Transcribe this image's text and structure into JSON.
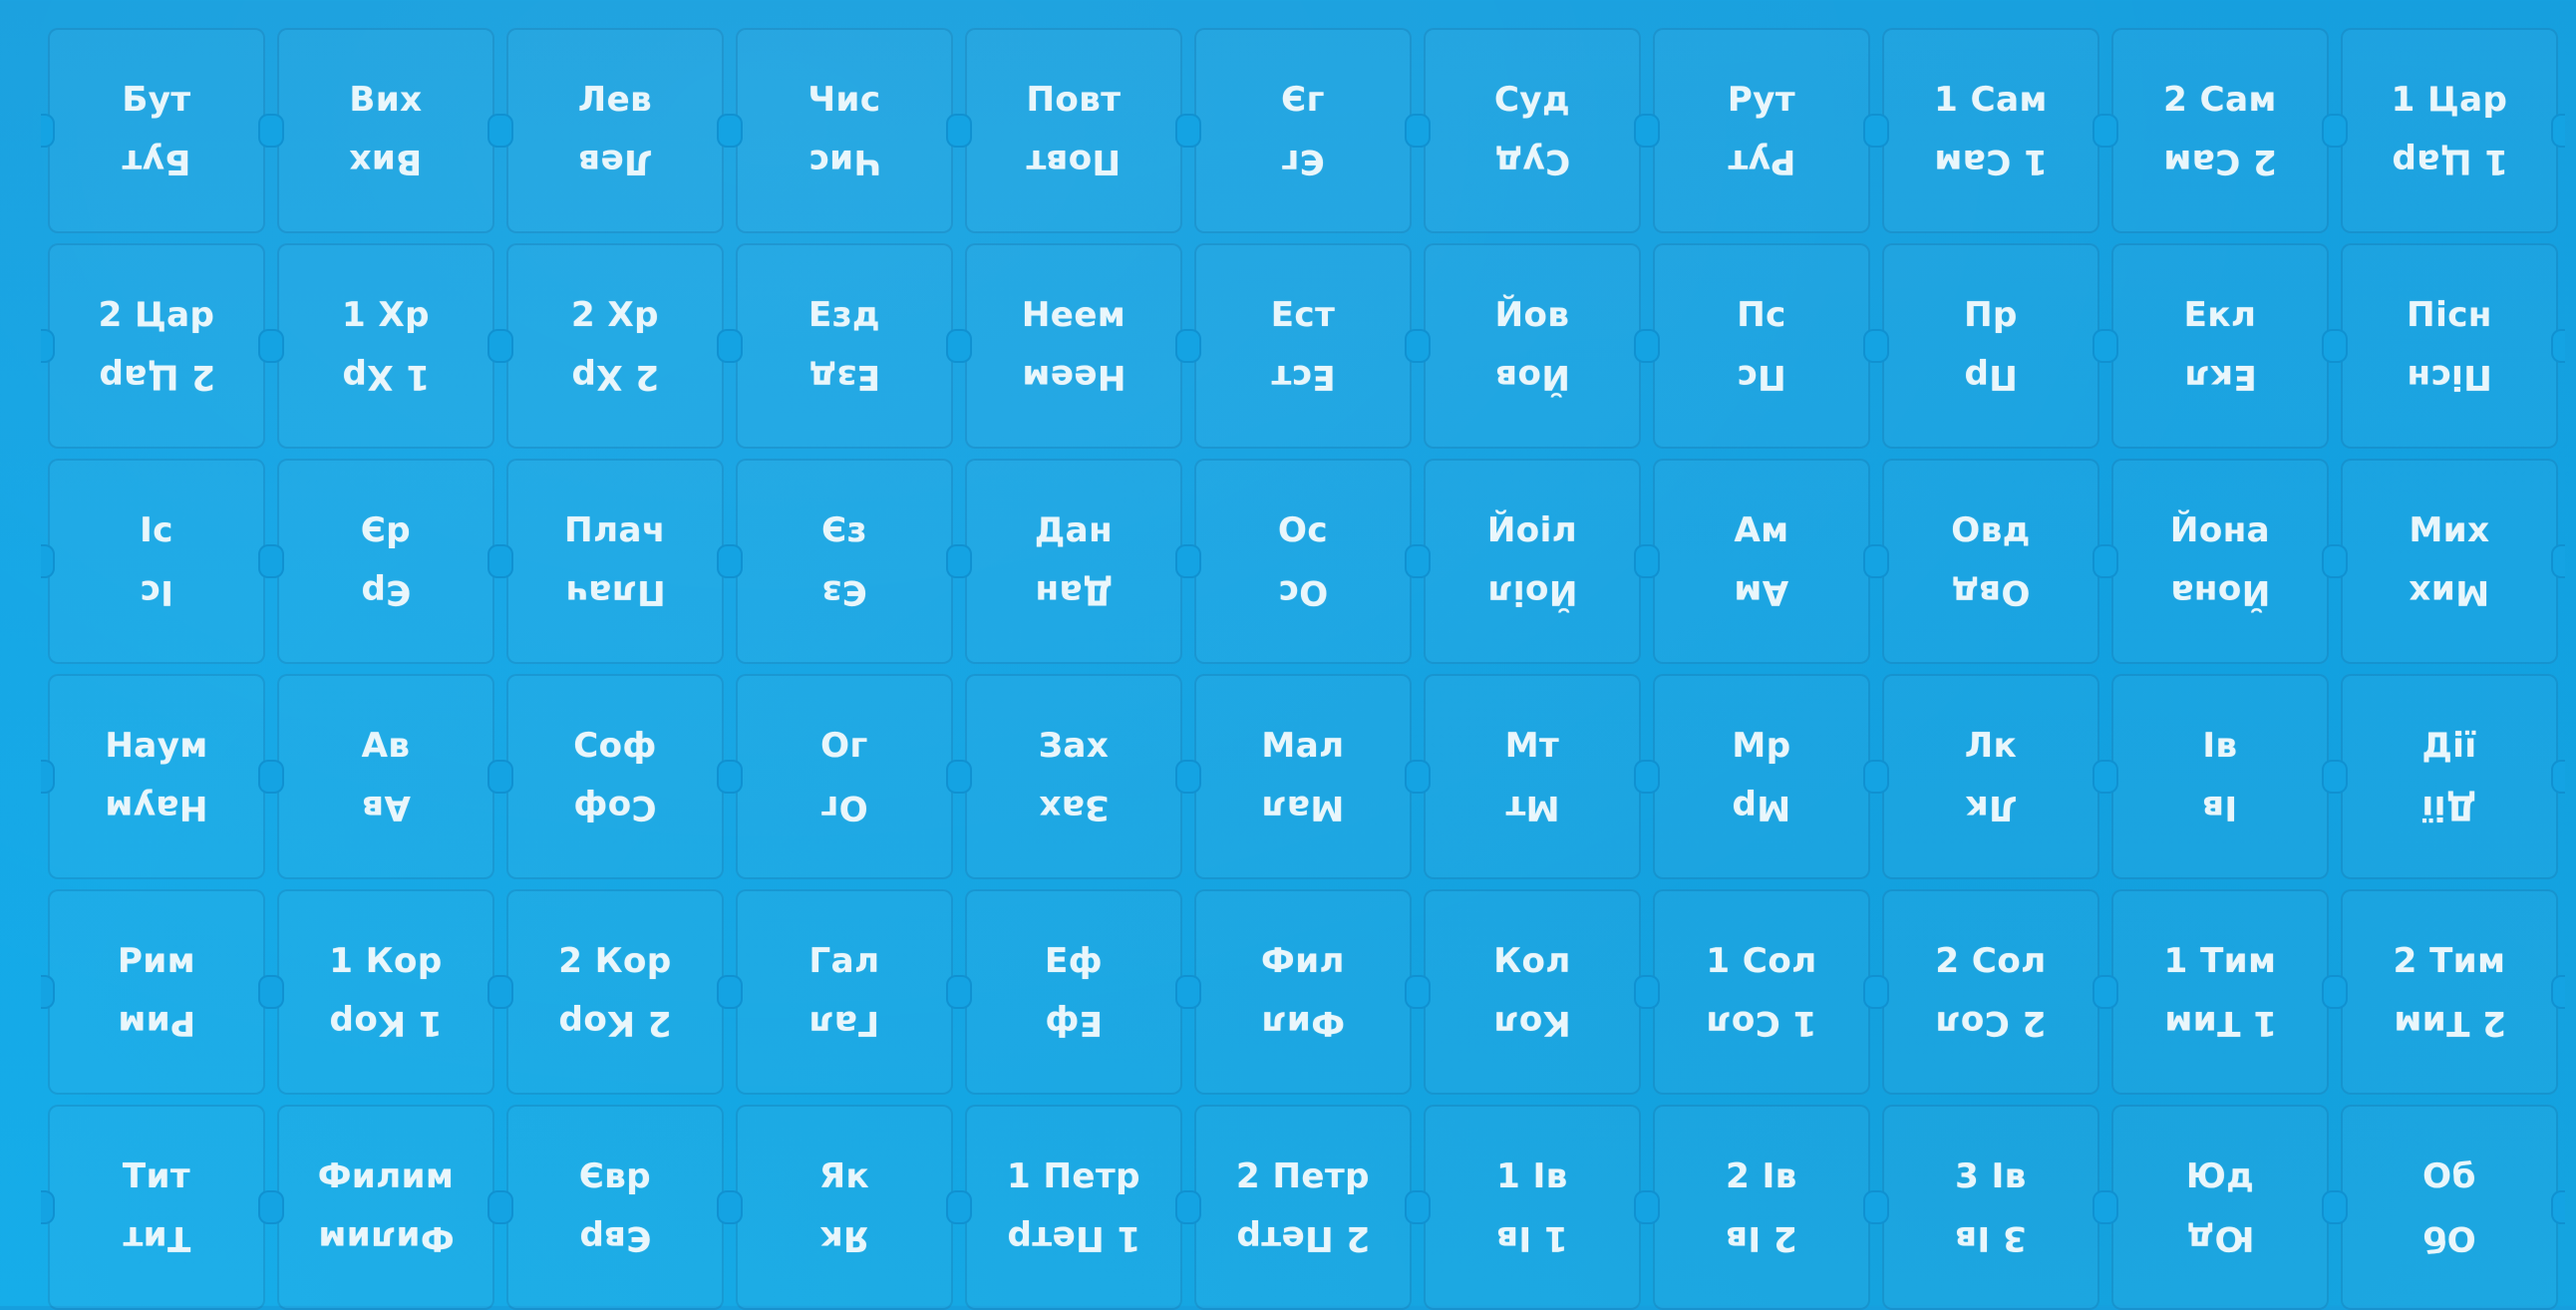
{
  "sheet": {
    "rows": [
      [
        "Бут",
        "Вих",
        "Лев",
        "Чис",
        "Повт",
        "Єг",
        "Суд",
        "Рут",
        "1 Сам",
        "2 Сам",
        "1 Цар"
      ],
      [
        "2 Цар",
        "1 Хр",
        "2 Хр",
        "Езд",
        "Неем",
        "Ест",
        "Йов",
        "Пс",
        "Пр",
        "Екл",
        "Пісн"
      ],
      [
        "Іс",
        "Єр",
        "Плач",
        "Єз",
        "Дан",
        "Ос",
        "Йоіл",
        "Ам",
        "Овд",
        "Йона",
        "Мих"
      ],
      [
        "Наум",
        "Ав",
        "Соф",
        "Ог",
        "Зах",
        "Мал",
        "Мт",
        "Мр",
        "Лк",
        "Ів",
        "Дії"
      ],
      [
        "Рим",
        "1 Кор",
        "2 Кор",
        "Гал",
        "Еф",
        "Фил",
        "Кол",
        "1 Сол",
        "2 Сол",
        "1 Тим",
        "2 Тим"
      ],
      [
        "Тит",
        "Филим",
        "Євр",
        "Як",
        "1 Петр",
        "2 Петр",
        "1 Ів",
        "2 Ів",
        "3 Ів",
        "Юд",
        "Об"
      ]
    ]
  },
  "colors": {
    "background": "#14a3e3",
    "text": "#e9f6fb"
  }
}
